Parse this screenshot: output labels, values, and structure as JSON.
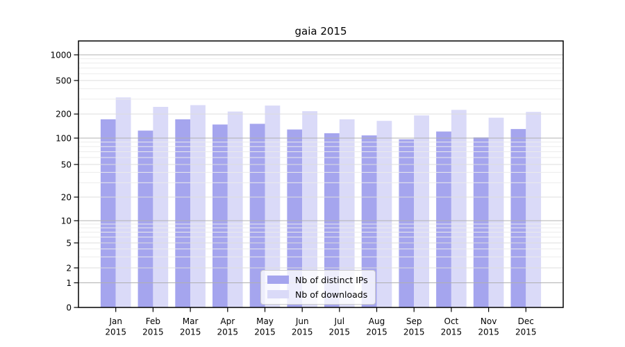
{
  "window": {
    "background": "#ffffff"
  },
  "chart_data": {
    "type": "bar",
    "title": "gaia 2015",
    "categories": [
      "Jan",
      "Feb",
      "Mar",
      "Apr",
      "May",
      "Jun",
      "Jul",
      "Aug",
      "Sep",
      "Oct",
      "Nov",
      "Dec"
    ],
    "x_tick_second_line": "2015",
    "series": [
      {
        "name": "Nb of distinct IPs",
        "color": "#a5a5ee",
        "values": [
          172,
          124,
          172,
          148,
          151,
          128,
          115,
          108,
          97,
          121,
          102,
          130
        ]
      },
      {
        "name": "Nb of downloads",
        "color": "#dadaf8",
        "values": [
          315,
          243,
          255,
          214,
          252,
          216,
          172,
          164,
          192,
          224,
          180,
          212
        ]
      }
    ],
    "xlabel": "",
    "ylabel": "",
    "y_axis": {
      "scale": "log",
      "ticks": [
        0,
        1,
        2,
        5,
        10,
        20,
        50,
        100,
        200,
        500,
        1000
      ],
      "range": [
        0,
        1470
      ],
      "minor_gridlines": true
    },
    "grid": "on",
    "grid_over_bars": true,
    "legend": {
      "position": "inside-bottom-center"
    },
    "colors": {
      "decade_gridline": "#b0b0b0",
      "labeled_minor_gridline": "#dddddd",
      "minor_gridline": "#ebebeb",
      "axis_frame": "#000000",
      "tick_text": "#000000"
    }
  }
}
